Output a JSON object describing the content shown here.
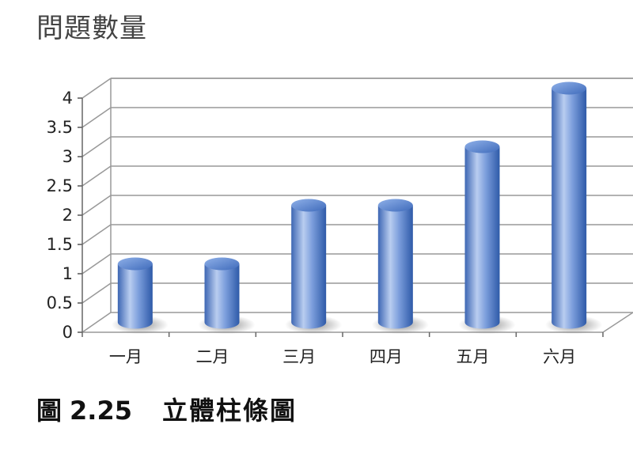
{
  "chart_data": {
    "type": "bar",
    "title": "問題數量",
    "caption_label": "圖",
    "caption_number": "2.25",
    "caption_text": "立體柱條圖",
    "categories": [
      "一月",
      "二月",
      "三月",
      "四月",
      "五月",
      "六月"
    ],
    "values": [
      1,
      1,
      2,
      2,
      3,
      4
    ],
    "yticks": [
      "0",
      "0.5",
      "1",
      "1.5",
      "2",
      "2.5",
      "3",
      "3.5",
      "4"
    ],
    "ylim": [
      0,
      4
    ],
    "grid": true,
    "style": "3d-cylinder",
    "colors": {
      "bar_light": "#b9cdf0",
      "bar_mid": "#6d93d6",
      "bar_dark": "#2e5aa8",
      "grid": "#999999"
    }
  }
}
